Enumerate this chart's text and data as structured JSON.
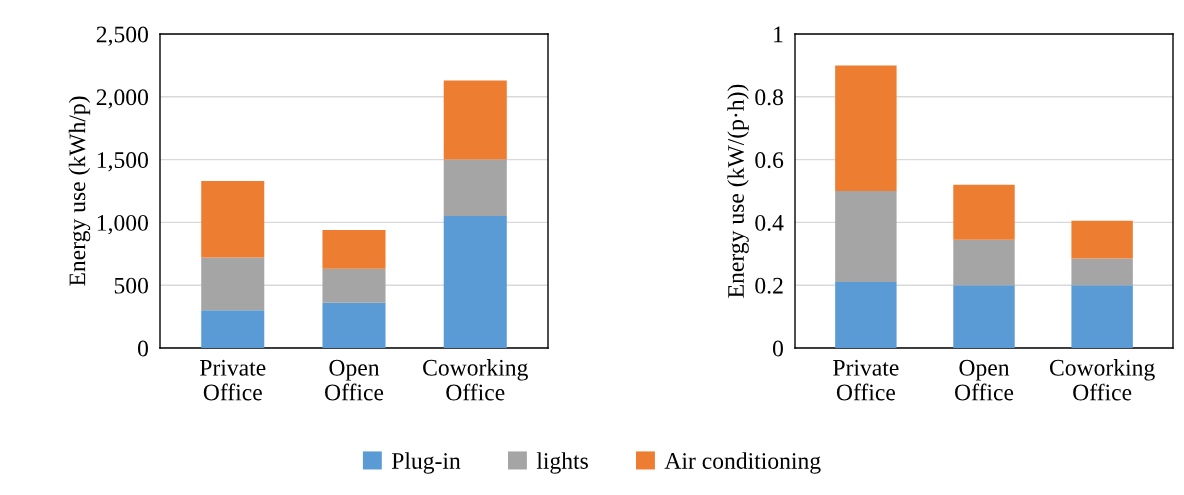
{
  "chart_data": [
    {
      "type": "bar",
      "stacked": true,
      "ylabel": "Energy use (kWh/p)",
      "categories": [
        "Private\nOffice",
        "Open\nOffice",
        "Coworking\nOffice"
      ],
      "ylim": [
        0,
        2500
      ],
      "yticks": [
        {
          "value": 0,
          "label": "0"
        },
        {
          "value": 500,
          "label": "500"
        },
        {
          "value": 1000,
          "label": "1,000"
        },
        {
          "value": 1500,
          "label": "1,500"
        },
        {
          "value": 2000,
          "label": "2,000"
        },
        {
          "value": 2500,
          "label": "2,500"
        }
      ],
      "grid": "y",
      "legend": "bottom",
      "series": [
        {
          "name": "Plug-in",
          "color": "#5b9bd5",
          "values": [
            300,
            360,
            1050
          ]
        },
        {
          "name": "lights",
          "color": "#a5a5a5",
          "values": [
            420,
            270,
            450
          ]
        },
        {
          "name": "Air conditioning",
          "color": "#ed7d31",
          "values": [
            610,
            310,
            630
          ]
        }
      ]
    },
    {
      "type": "bar",
      "stacked": true,
      "ylabel": "Energy use (kW/(p·h))",
      "categories": [
        "Private\nOffice",
        "Open\nOffice",
        "Coworking\nOffice"
      ],
      "ylim": [
        0,
        1
      ],
      "yticks": [
        0,
        0.2,
        0.4,
        0.6,
        0.8,
        1
      ],
      "grid": "y",
      "legend": "bottom",
      "series": [
        {
          "name": "Plug-in",
          "color": "#5b9bd5",
          "values": [
            0.21,
            0.2,
            0.2
          ]
        },
        {
          "name": "lights",
          "color": "#a5a5a5",
          "values": [
            0.29,
            0.145,
            0.085
          ]
        },
        {
          "name": "Air conditioning",
          "color": "#ed7d31",
          "values": [
            0.4,
            0.175,
            0.12
          ]
        }
      ]
    }
  ]
}
